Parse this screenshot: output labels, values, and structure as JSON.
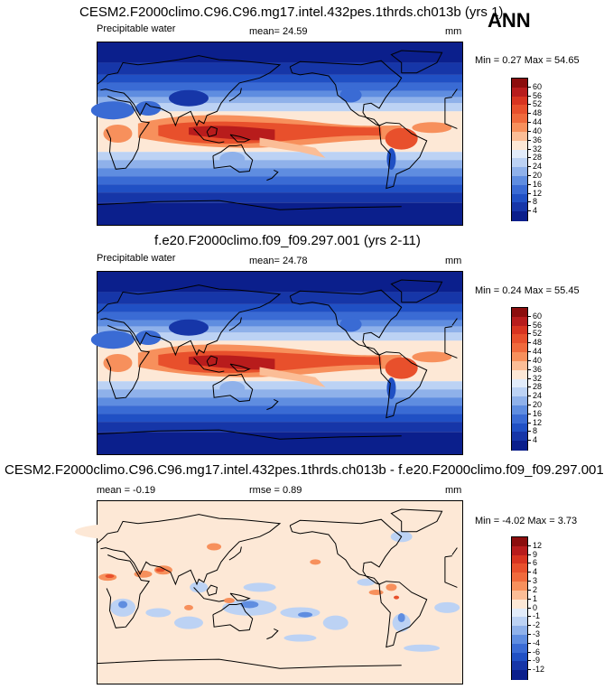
{
  "season": "ANN",
  "panels": [
    {
      "title": "CESM2.F2000climo.C96.C96.mg17.intel.432pes.1thrds.ch013b (yrs 1)",
      "field": "Precipitable water",
      "stat_left": "",
      "stat_mid": "mean=  24.59",
      "units": "mm",
      "minmax": "Min =  0.27 Max =  54.65",
      "colorbar": {
        "labels": [
          "60",
          "56",
          "52",
          "48",
          "44",
          "40",
          "36",
          "32",
          "28",
          "24",
          "20",
          "16",
          "12",
          "8",
          "4"
        ],
        "colors": [
          "#8c0d0d",
          "#b81c1c",
          "#d83420",
          "#e8502c",
          "#f06a3c",
          "#f7905c",
          "#fbbd96",
          "#fde8d6",
          "#e2ecfa",
          "#bcd2f4",
          "#8fb1ea",
          "#5f8de0",
          "#3a6bd4",
          "#2050c4",
          "#1636a8",
          "#0b1f8c"
        ]
      },
      "style": "abs"
    },
    {
      "title": "f.e20.F2000climo.f09_f09.297.001 (yrs 2-11)",
      "field": "Precipitable water",
      "stat_left": "",
      "stat_mid": "mean=  24.78",
      "units": "mm",
      "minmax": "Min =  0.24 Max =  55.45",
      "colorbar": {
        "labels": [
          "60",
          "56",
          "52",
          "48",
          "44",
          "40",
          "36",
          "32",
          "28",
          "24",
          "20",
          "16",
          "12",
          "8",
          "4"
        ],
        "colors": [
          "#8c0d0d",
          "#b81c1c",
          "#d83420",
          "#e8502c",
          "#f06a3c",
          "#f7905c",
          "#fbbd96",
          "#fde8d6",
          "#e2ecfa",
          "#bcd2f4",
          "#8fb1ea",
          "#5f8de0",
          "#3a6bd4",
          "#2050c4",
          "#1636a8",
          "#0b1f8c"
        ]
      },
      "style": "abs"
    },
    {
      "title": "CESM2.F2000climo.C96.C96.mg17.intel.432pes.1thrds.ch013b - f.e20.F2000climo.f09_f09.297.001",
      "field": "",
      "stat_left": "mean =  -0.19",
      "stat_mid": "rmse =   0.89",
      "units": "mm",
      "minmax": "Min =  -4.02 Max =   3.73",
      "colorbar": {
        "labels": [
          "12",
          "9",
          "6",
          "4",
          "3",
          "2",
          "1",
          "0",
          "-1",
          "-2",
          "-3",
          "-4",
          "-6",
          "-9",
          "-12"
        ],
        "colors": [
          "#8c0d0d",
          "#b81c1c",
          "#d83420",
          "#e8502c",
          "#f06a3c",
          "#f7905c",
          "#fbbd96",
          "#fde8d6",
          "#e2ecfa",
          "#bcd2f4",
          "#8fb1ea",
          "#5f8de0",
          "#3a6bd4",
          "#2050c4",
          "#1636a8",
          "#0b1f8c"
        ]
      },
      "style": "diff"
    }
  ]
}
